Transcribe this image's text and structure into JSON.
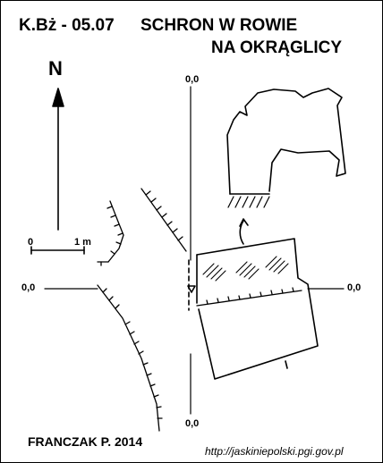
{
  "title": {
    "code": "K.Bż - 05.07",
    "name_line1": "SCHRON W ROWIE",
    "name_line2": "NA OKRĄGLICY"
  },
  "north": {
    "label": "N",
    "icon": "north-arrow-icon"
  },
  "scale_bar": {
    "start": "0",
    "end": "1 m"
  },
  "datum_labels": {
    "top": "0,0",
    "left": "0,0",
    "right": "0,0",
    "bottom": "0,0"
  },
  "author": "FRANCZAK P. 2014",
  "source_url": "http://jaskiniepolski.pgi.gov.pl"
}
